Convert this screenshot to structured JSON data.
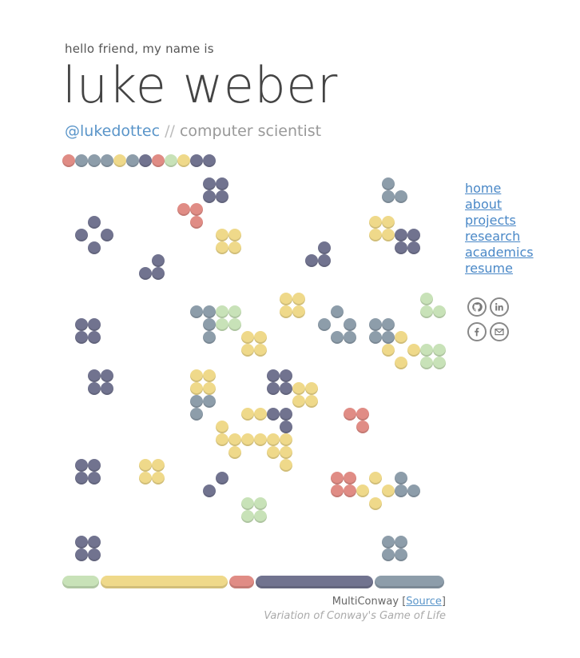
{
  "header": {
    "greeting": "hello friend, my name is",
    "name": "luke weber",
    "handle": "@lukedottec",
    "separator": "//",
    "role": "computer scientist"
  },
  "colors": {
    "red": "#e08c85",
    "slate": "#8d9daa",
    "purple": "#71738f",
    "yellow": "#efd98a",
    "green": "#c8e2b8"
  },
  "nav": {
    "items": [
      "home",
      "about",
      "projects",
      "research",
      "academics",
      "resume"
    ]
  },
  "social": {
    "icons": [
      "github-icon",
      "linkedin-icon",
      "facebook-icon",
      "email-icon"
    ]
  },
  "palette": [
    "red",
    "slate",
    "slate",
    "slate",
    "yellow",
    "slate",
    "purple",
    "red",
    "green",
    "yellow",
    "purple",
    "purple"
  ],
  "board": {
    "cells": [
      [
        "purple",
        11,
        0
      ],
      [
        "purple",
        12,
        0
      ],
      [
        "purple",
        11,
        1
      ],
      [
        "purple",
        12,
        1
      ],
      [
        "red",
        9,
        2
      ],
      [
        "red",
        10,
        2
      ],
      [
        "red",
        10,
        3
      ],
      [
        "slate",
        25,
        0
      ],
      [
        "slate",
        25,
        1
      ],
      [
        "slate",
        26,
        1
      ],
      [
        "purple",
        2,
        3
      ],
      [
        "purple",
        1,
        4
      ],
      [
        "purple",
        3,
        4
      ],
      [
        "purple",
        2,
        5
      ],
      [
        "yellow",
        12,
        4
      ],
      [
        "yellow",
        13,
        4
      ],
      [
        "yellow",
        12,
        5
      ],
      [
        "yellow",
        13,
        5
      ],
      [
        "yellow",
        24,
        3
      ],
      [
        "yellow",
        25,
        3
      ],
      [
        "yellow",
        24,
        4
      ],
      [
        "yellow",
        25,
        4
      ],
      [
        "purple",
        26,
        4
      ],
      [
        "purple",
        27,
        4
      ],
      [
        "purple",
        26,
        5
      ],
      [
        "purple",
        27,
        5
      ],
      [
        "purple",
        20,
        5
      ],
      [
        "purple",
        19,
        6
      ],
      [
        "purple",
        20,
        6
      ],
      [
        "purple",
        7,
        6
      ],
      [
        "purple",
        6,
        7
      ],
      [
        "purple",
        7,
        7
      ],
      [
        "yellow",
        17,
        9
      ],
      [
        "yellow",
        18,
        9
      ],
      [
        "yellow",
        17,
        10
      ],
      [
        "yellow",
        18,
        10
      ],
      [
        "green",
        28,
        9
      ],
      [
        "green",
        28,
        10
      ],
      [
        "green",
        29,
        10
      ],
      [
        "slate",
        10,
        10
      ],
      [
        "slate",
        11,
        10
      ],
      [
        "green",
        12,
        10
      ],
      [
        "green",
        13,
        10
      ],
      [
        "slate",
        11,
        11
      ],
      [
        "green",
        12,
        11
      ],
      [
        "green",
        13,
        11
      ],
      [
        "slate",
        11,
        12
      ],
      [
        "slate",
        21,
        10
      ],
      [
        "slate",
        20,
        11
      ],
      [
        "slate",
        22,
        11
      ],
      [
        "slate",
        21,
        12
      ],
      [
        "slate",
        22,
        12
      ],
      [
        "slate",
        24,
        11
      ],
      [
        "slate",
        25,
        11
      ],
      [
        "slate",
        24,
        12
      ],
      [
        "slate",
        25,
        12
      ],
      [
        "yellow",
        26,
        12
      ],
      [
        "yellow",
        14,
        12
      ],
      [
        "yellow",
        15,
        12
      ],
      [
        "yellow",
        14,
        13
      ],
      [
        "yellow",
        15,
        13
      ],
      [
        "purple",
        1,
        11
      ],
      [
        "purple",
        2,
        11
      ],
      [
        "purple",
        1,
        12
      ],
      [
        "purple",
        2,
        12
      ],
      [
        "yellow",
        25,
        13
      ],
      [
        "yellow",
        27,
        13
      ],
      [
        "green",
        28,
        13
      ],
      [
        "green",
        29,
        13
      ],
      [
        "yellow",
        26,
        14
      ],
      [
        "green",
        28,
        14
      ],
      [
        "green",
        29,
        14
      ],
      [
        "purple",
        2,
        15
      ],
      [
        "purple",
        3,
        15
      ],
      [
        "purple",
        2,
        16
      ],
      [
        "purple",
        3,
        16
      ],
      [
        "yellow",
        10,
        15
      ],
      [
        "yellow",
        11,
        15
      ],
      [
        "yellow",
        10,
        16
      ],
      [
        "yellow",
        11,
        16
      ],
      [
        "slate",
        10,
        17
      ],
      [
        "slate",
        11,
        17
      ],
      [
        "slate",
        10,
        18
      ],
      [
        "purple",
        16,
        15
      ],
      [
        "purple",
        17,
        15
      ],
      [
        "purple",
        16,
        16
      ],
      [
        "purple",
        17,
        16
      ],
      [
        "yellow",
        18,
        16
      ],
      [
        "yellow",
        19,
        16
      ],
      [
        "yellow",
        18,
        17
      ],
      [
        "yellow",
        19,
        17
      ],
      [
        "yellow",
        14,
        18
      ],
      [
        "yellow",
        15,
        18
      ],
      [
        "purple",
        16,
        18
      ],
      [
        "purple",
        17,
        18
      ],
      [
        "purple",
        17,
        19
      ],
      [
        "red",
        22,
        18
      ],
      [
        "red",
        23,
        18
      ],
      [
        "red",
        23,
        19
      ],
      [
        "yellow",
        12,
        19
      ],
      [
        "yellow",
        12,
        20
      ],
      [
        "yellow",
        13,
        20
      ],
      [
        "yellow",
        14,
        20
      ],
      [
        "yellow",
        15,
        20
      ],
      [
        "yellow",
        16,
        20
      ],
      [
        "yellow",
        17,
        20
      ],
      [
        "yellow",
        13,
        21
      ],
      [
        "yellow",
        16,
        21
      ],
      [
        "yellow",
        17,
        21
      ],
      [
        "yellow",
        17,
        22
      ],
      [
        "purple",
        1,
        22
      ],
      [
        "purple",
        2,
        22
      ],
      [
        "purple",
        1,
        23
      ],
      [
        "purple",
        2,
        23
      ],
      [
        "yellow",
        6,
        22
      ],
      [
        "yellow",
        7,
        22
      ],
      [
        "yellow",
        6,
        23
      ],
      [
        "yellow",
        7,
        23
      ],
      [
        "purple",
        12,
        23
      ],
      [
        "purple",
        11,
        24
      ],
      [
        "red",
        21,
        23
      ],
      [
        "red",
        22,
        23
      ],
      [
        "red",
        21,
        24
      ],
      [
        "red",
        22,
        24
      ],
      [
        "yellow",
        24,
        23
      ],
      [
        "yellow",
        23,
        24
      ],
      [
        "yellow",
        25,
        24
      ],
      [
        "yellow",
        24,
        25
      ],
      [
        "slate",
        26,
        23
      ],
      [
        "slate",
        26,
        24
      ],
      [
        "slate",
        27,
        24
      ],
      [
        "green",
        14,
        25
      ],
      [
        "green",
        15,
        25
      ],
      [
        "green",
        14,
        26
      ],
      [
        "green",
        15,
        26
      ],
      [
        "purple",
        1,
        28
      ],
      [
        "purple",
        2,
        28
      ],
      [
        "purple",
        1,
        29
      ],
      [
        "purple",
        2,
        29
      ],
      [
        "slate",
        25,
        28
      ],
      [
        "slate",
        26,
        28
      ],
      [
        "slate",
        25,
        29
      ],
      [
        "slate",
        26,
        29
      ]
    ]
  },
  "stats": [
    {
      "color": "green",
      "fraction": 0.1
    },
    {
      "color": "yellow",
      "fraction": 0.335
    },
    {
      "color": "red",
      "fraction": 0.07
    },
    {
      "color": "purple",
      "fraction": 0.31
    },
    {
      "color": "slate",
      "fraction": 0.185
    }
  ],
  "footer": {
    "title": "MultiConway",
    "bracket_open": "[",
    "source_label": "Source",
    "bracket_close": "]",
    "description": "Variation of Conway's Game of Life"
  }
}
